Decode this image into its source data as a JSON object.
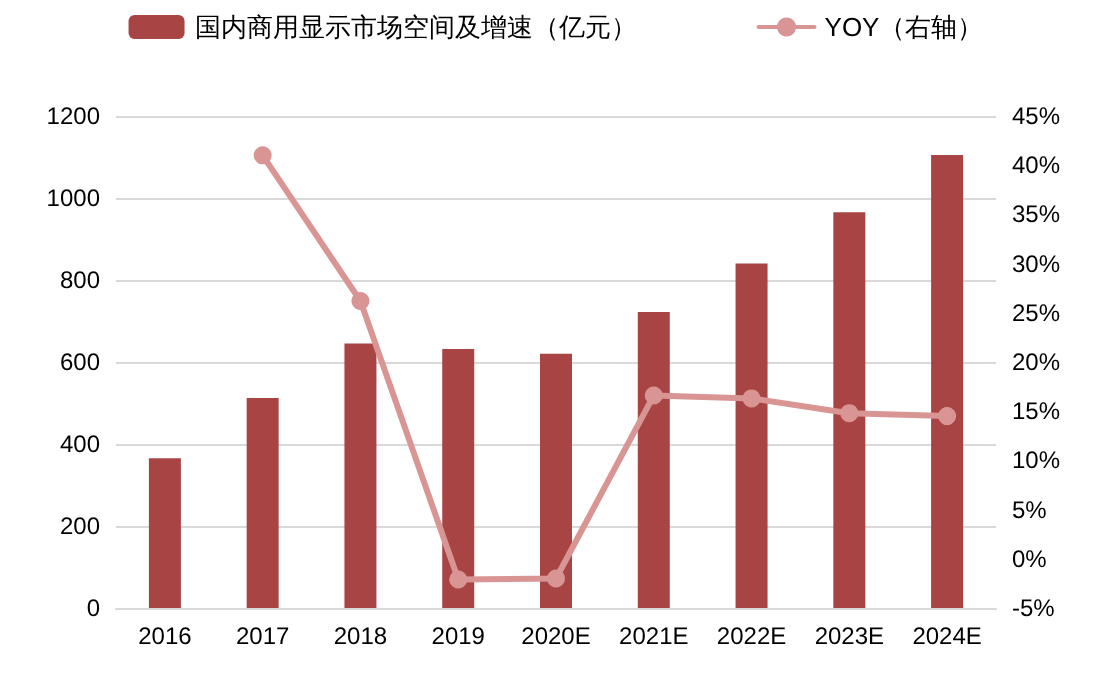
{
  "chart_data": {
    "type": "bar",
    "categories": [
      "2016",
      "2017",
      "2018",
      "2019",
      "2020E",
      "2021E",
      "2022E",
      "2023E",
      "2024E"
    ],
    "series": [
      {
        "name": "国内商用显示市场空间及增速（亿元）",
        "color": "#a84444",
        "values": [
          365,
          512,
          645,
          632,
          620,
          722,
          840,
          965,
          1105
        ]
      },
      {
        "name": "YOY（右轴）",
        "type": "line",
        "axis": "y2",
        "color": "#d99594",
        "values": [
          null,
          41,
          26.2,
          -2.1,
          -2,
          16.6,
          16.3,
          14.8,
          14.5
        ]
      }
    ],
    "ylim": [
      0,
      1200
    ],
    "yticks": [
      0,
      200,
      400,
      600,
      800,
      1000,
      1200
    ],
    "y2lim": [
      -5,
      45
    ],
    "y2ticks": [
      {
        "value": -5,
        "label": "-5%"
      },
      {
        "value": 0,
        "label": "0%"
      },
      {
        "value": 5,
        "label": "5%"
      },
      {
        "value": 10,
        "label": "10%"
      },
      {
        "value": 15,
        "label": "15%"
      },
      {
        "value": 20,
        "label": "20%"
      },
      {
        "value": 25,
        "label": "25%"
      },
      {
        "value": 30,
        "label": "30%"
      },
      {
        "value": 35,
        "label": "35%"
      },
      {
        "value": 40,
        "label": "40%"
      },
      {
        "value": 45,
        "label": "45%"
      }
    ],
    "grid": "y",
    "legend": "top",
    "marker": "circle"
  }
}
